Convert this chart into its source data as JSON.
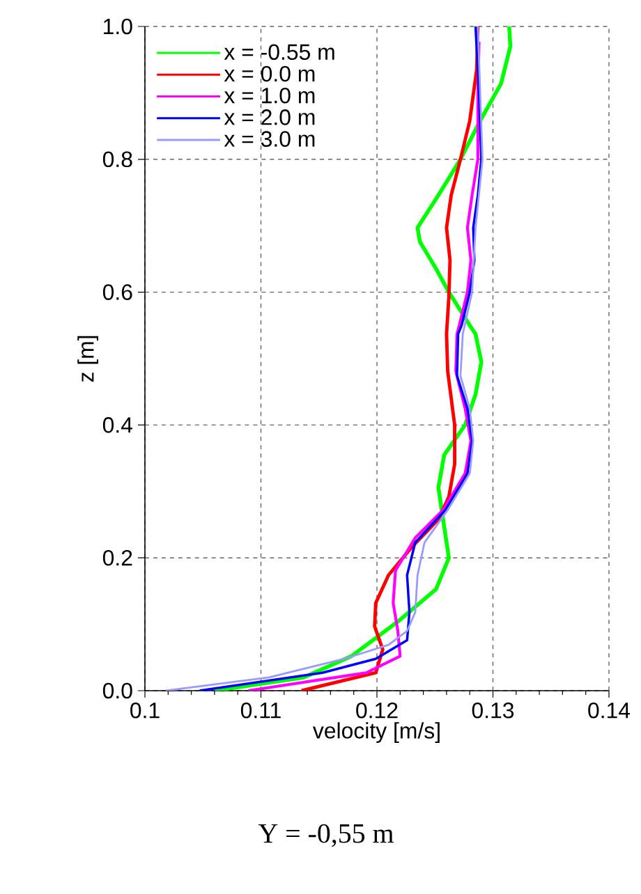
{
  "chart_data": {
    "type": "line",
    "xlabel": "velocity [m/s]",
    "ylabel": "z [m]",
    "annotations": [
      "Y = -0,55 m"
    ],
    "xlim": [
      0.1,
      0.14
    ],
    "xticks": [
      0.1,
      0.11,
      0.12,
      0.13,
      0.14
    ],
    "ylim": [
      0,
      1
    ],
    "yticks": [
      {
        "value": 0,
        "label": "0.0"
      },
      0.2,
      0.4,
      0.6,
      0.8,
      {
        "value": 1,
        "label": "1.0"
      }
    ],
    "grid": true,
    "legend": "top left",
    "line_style": "solid",
    "series": [
      {
        "name": "x = -0.55 m",
        "color": "#00ff00",
        "x": [
          0.1314,
          0.1315,
          0.1307,
          0.1289,
          0.1272,
          0.1253,
          0.1235,
          0.1237,
          0.1251,
          0.1262,
          0.128,
          0.1285,
          0.129,
          0.1285,
          0.1276,
          0.1258,
          0.1253,
          0.1257,
          0.1262,
          0.1251,
          0.1218,
          0.1178,
          0.1137,
          0.106
        ],
        "values": [
          1.0,
          0.97,
          0.914,
          0.858,
          0.8,
          0.746,
          0.697,
          0.676,
          0.635,
          0.6,
          0.55,
          0.537,
          0.495,
          0.446,
          0.4,
          0.355,
          0.306,
          0.258,
          0.2,
          0.153,
          0.104,
          0.052,
          0.02,
          0.0
        ]
      },
      {
        "name": "x = 0.0 m",
        "color": "#ff0000",
        "x": [
          0.1287,
          0.1286,
          0.128,
          0.1272,
          0.1264,
          0.126,
          0.1263,
          0.1262,
          0.126,
          0.1261,
          0.1267,
          0.1267,
          0.1262,
          0.1253,
          0.123,
          0.121,
          0.1199,
          0.1198,
          0.1205,
          0.1199,
          0.1135
        ],
        "values": [
          1.0,
          0.935,
          0.858,
          0.8,
          0.746,
          0.697,
          0.648,
          0.593,
          0.537,
          0.481,
          0.4,
          0.341,
          0.292,
          0.258,
          0.216,
          0.174,
          0.132,
          0.097,
          0.062,
          0.027,
          0.0
        ]
      },
      {
        "name": "x = 1.0 m",
        "color": "#ff00ff",
        "x": [
          0.1288,
          0.1287,
          0.1287,
          0.1282,
          0.1278,
          0.1281,
          0.1278,
          0.1271,
          0.1269,
          0.1268,
          0.1276,
          0.1281,
          0.1276,
          0.1257,
          0.1233,
          0.1216,
          0.1214,
          0.1218,
          0.122,
          0.1191,
          0.1089
        ],
        "values": [
          0.977,
          0.9,
          0.8,
          0.746,
          0.697,
          0.648,
          0.6,
          0.55,
          0.537,
          0.481,
          0.425,
          0.376,
          0.327,
          0.272,
          0.23,
          0.181,
          0.132,
          0.09,
          0.052,
          0.027,
          0.0
        ]
      },
      {
        "name": "x = 2.0 m",
        "color": "#0000ff",
        "x": [
          0.1285,
          0.1288,
          0.129,
          0.1287,
          0.1283,
          0.1284,
          0.128,
          0.1273,
          0.127,
          0.1269,
          0.1278,
          0.1282,
          0.1278,
          0.1259,
          0.1233,
          0.1226,
          0.1228,
          0.1226,
          0.1199,
          0.1153,
          0.1047
        ],
        "values": [
          1.0,
          0.9,
          0.8,
          0.746,
          0.697,
          0.648,
          0.6,
          0.55,
          0.537,
          0.474,
          0.425,
          0.376,
          0.327,
          0.272,
          0.223,
          0.174,
          0.118,
          0.076,
          0.048,
          0.027,
          0.0
        ]
      },
      {
        "name": "x = 3.0 m",
        "color": "#9999ff",
        "x": [
          0.1287,
          0.1289,
          0.1291,
          0.1285,
          0.1282,
          0.1274,
          0.1272,
          0.128,
          0.1283,
          0.128,
          0.1261,
          0.1241,
          0.1235,
          0.1233,
          0.1226,
          0.121,
          0.1172,
          0.1107,
          0.1018
        ],
        "values": [
          1.0,
          0.9,
          0.8,
          0.697,
          0.6,
          0.537,
          0.474,
          0.425,
          0.376,
          0.327,
          0.272,
          0.223,
          0.174,
          0.118,
          0.09,
          0.069,
          0.048,
          0.02,
          0.0
        ]
      }
    ]
  }
}
